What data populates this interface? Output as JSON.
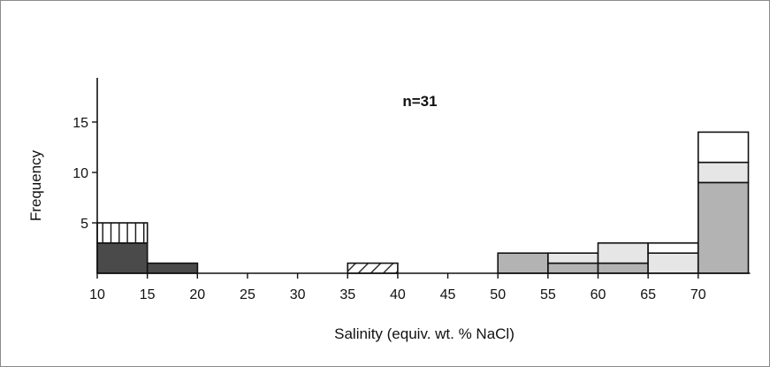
{
  "chart_data": {
    "type": "bar",
    "annotation": "n=31",
    "xlabel": "Salinity (equiv. wt. % NaCl)",
    "ylabel": "Frequency",
    "xlim": [
      10,
      75
    ],
    "ylim": [
      0,
      20
    ],
    "x_ticks": [
      10,
      15,
      20,
      25,
      30,
      35,
      40,
      45,
      50,
      55,
      60,
      65,
      70
    ],
    "y_ticks": [
      5,
      10,
      15
    ],
    "bin_width": 5,
    "grid": false,
    "legend": "none",
    "stacks": [
      {
        "bin": [
          10,
          15
        ],
        "segments": [
          {
            "value": 3,
            "style": "dark"
          },
          {
            "value": 2,
            "style": "vertical-hatch"
          }
        ]
      },
      {
        "bin": [
          15,
          20
        ],
        "segments": [
          {
            "value": 1,
            "style": "dark"
          }
        ]
      },
      {
        "bin": [
          35,
          40
        ],
        "segments": [
          {
            "value": 1,
            "style": "diagonal-hatch"
          }
        ]
      },
      {
        "bin": [
          50,
          55
        ],
        "segments": [
          {
            "value": 2,
            "style": "mid-gray"
          }
        ]
      },
      {
        "bin": [
          55,
          60
        ],
        "segments": [
          {
            "value": 1,
            "style": "mid-gray"
          },
          {
            "value": 1,
            "style": "light-gray"
          }
        ]
      },
      {
        "bin": [
          60,
          65
        ],
        "segments": [
          {
            "value": 1,
            "style": "mid-gray"
          },
          {
            "value": 2,
            "style": "light-gray"
          }
        ]
      },
      {
        "bin": [
          65,
          70
        ],
        "segments": [
          {
            "value": 2,
            "style": "light-gray"
          },
          {
            "value": 1,
            "style": "white"
          }
        ]
      },
      {
        "bin": [
          70,
          75
        ],
        "segments": [
          {
            "value": 9,
            "style": "mid-gray"
          },
          {
            "value": 2,
            "style": "light-gray"
          },
          {
            "value": 3,
            "style": "white"
          }
        ]
      }
    ],
    "styles": {
      "dark": "#4a4a4a",
      "mid-gray": "#b3b3b3",
      "light-gray": "#e6e6e6",
      "white": "#ffffff",
      "vertical-hatch": "pattern:vertical",
      "diagonal-hatch": "pattern:diagonal"
    }
  }
}
